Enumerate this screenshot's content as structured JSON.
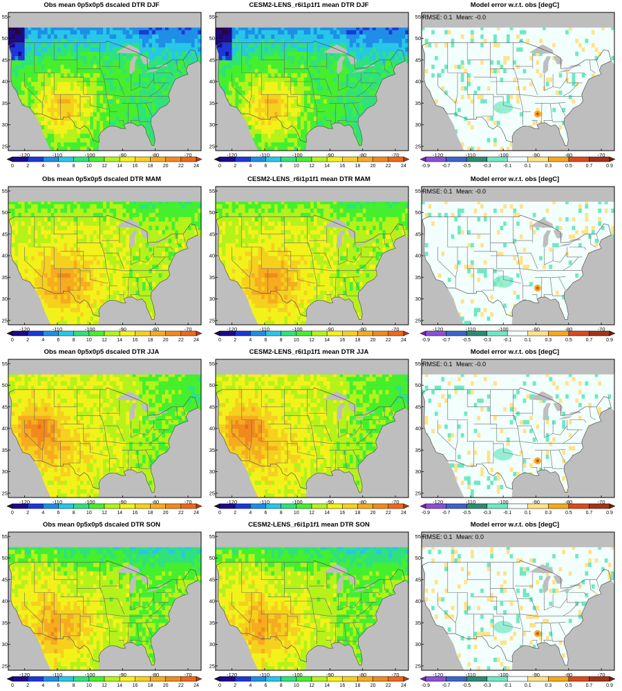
{
  "columns": [
    "obs",
    "model",
    "error"
  ],
  "seasons": [
    "DJF",
    "MAM",
    "JJA",
    "SON"
  ],
  "panels": [
    {
      "title": "Obs mean 0p5x0p5 dscaled DTR DJF",
      "type": "obs",
      "season": "DJF"
    },
    {
      "title": "CESM2-LENS_r6i1p1f1 mean DTR DJF",
      "type": "model",
      "season": "DJF"
    },
    {
      "title": "Model error w.r.t. obs [degC]",
      "type": "error",
      "season": "DJF",
      "rmse_label": "RMSE: 0.1",
      "mean_label": "Mean: -0.0"
    },
    {
      "title": "Obs mean 0p5x0p5 dscaled DTR MAM",
      "type": "obs",
      "season": "MAM"
    },
    {
      "title": "CESM2-LENS_r6i1p1f1 mean DTR MAM",
      "type": "model",
      "season": "MAM"
    },
    {
      "title": "Model error w.r.t. obs [degC]",
      "type": "error",
      "season": "MAM",
      "rmse_label": "RMSE: 0.1",
      "mean_label": "Mean: -0.0"
    },
    {
      "title": "Obs mean 0p5x0p5 dscaled DTR JJA",
      "type": "obs",
      "season": "JJA"
    },
    {
      "title": "CESM2-LENS_r6i1p1f1 mean DTR JJA",
      "type": "model",
      "season": "JJA"
    },
    {
      "title": "Model error w.r.t. obs [degC]",
      "type": "error",
      "season": "JJA",
      "rmse_label": "RMSE: 0.1",
      "mean_label": "Mean: -0.0"
    },
    {
      "title": "Obs mean 0p5x0p5 dscaled DTR SON",
      "type": "obs",
      "season": "SON"
    },
    {
      "title": "CESM2-LENS_r6i1p1f1 mean DTR SON",
      "type": "model",
      "season": "SON"
    },
    {
      "title": "Model error w.r.t. obs [degC]",
      "type": "error",
      "season": "SON",
      "rmse_label": "RMSE: 0.1",
      "mean_label": "Mean: 0.0"
    }
  ],
  "axes": {
    "lon_range": [
      -125,
      -66
    ],
    "lat_range": [
      24,
      56
    ],
    "lon_ticks": [
      "-120",
      "-110",
      "-100",
      "-90",
      "-80",
      "-70"
    ],
    "lat_ticks": [
      "25",
      "30",
      "35",
      "40",
      "45",
      "50",
      "55"
    ]
  },
  "colorbars": {
    "dtr": {
      "labels": [
        "0",
        "2",
        "4",
        "6",
        "8",
        "10",
        "12",
        "14",
        "16",
        "18",
        "20",
        "22",
        "24"
      ],
      "colors": [
        "#2a0640",
        "#1a0a8c",
        "#1b38d9",
        "#1e8ee6",
        "#27c7e8",
        "#2fe27a",
        "#45ef2e",
        "#b4f21a",
        "#f2f21a",
        "#f6d01e",
        "#f6ac1e",
        "#f08a1d",
        "#ec6a1a",
        "#bd3a12"
      ],
      "extend": "both"
    },
    "error": {
      "labels": [
        "-0.9",
        "-0.7",
        "-0.5",
        "-0.3",
        "-0.1",
        "0.1",
        "0.3",
        "0.5",
        "0.7",
        "0.9"
      ],
      "colors": [
        "#7b1fb0",
        "#8c4fd6",
        "#3c64c8",
        "#2e8a73",
        "#6fe8c3",
        "#f2fffc",
        "#ffe389",
        "#f4a81d",
        "#d84b1e",
        "#a23318",
        "#6b2310"
      ],
      "extend": "both"
    }
  },
  "colors": {
    "ocean": "#bebebe",
    "border": "#666666",
    "frame": "#000000"
  }
}
